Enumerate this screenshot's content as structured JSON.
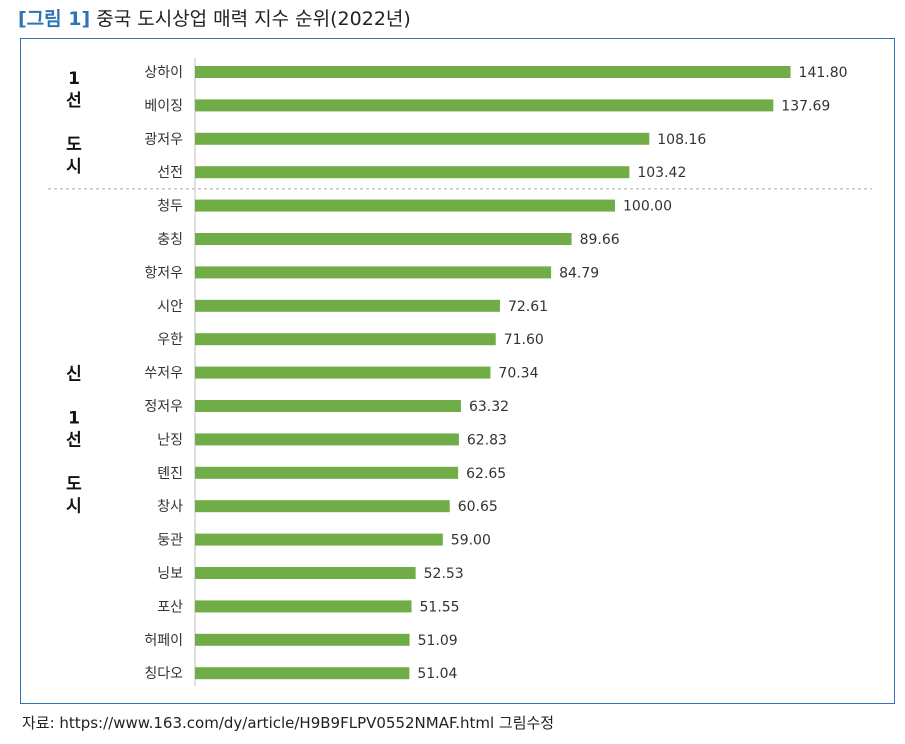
{
  "caption": {
    "tag": "[그림 1]",
    "title": "중국 도시상업 매력 지수 순위(2022년)"
  },
  "chart_data": {
    "type": "bar",
    "orientation": "horizontal",
    "categories": [
      "상하이",
      "베이징",
      "광저우",
      "선전",
      "청두",
      "충칭",
      "항저우",
      "시안",
      "우한",
      "쑤저우",
      "정저우",
      "난징",
      "톈진",
      "창사",
      "둥관",
      "닝보",
      "포산",
      "허페이",
      "칭다오"
    ],
    "values": [
      141.8,
      137.69,
      108.16,
      103.42,
      100.0,
      89.66,
      84.79,
      72.61,
      71.6,
      70.34,
      63.32,
      62.83,
      62.65,
      60.65,
      59.0,
      52.53,
      51.55,
      51.09,
      51.04
    ],
    "value_labels": [
      "141.80",
      "137.69",
      "108.16",
      "103.42",
      "100.00",
      "89.66",
      "84.79",
      "72.61",
      "71.60",
      "70.34",
      "63.32",
      "62.83",
      "62.65",
      "60.65",
      "59.00",
      "52.53",
      "51.55",
      "51.09",
      "51.04"
    ],
    "groups": [
      {
        "lines": [
          "1",
          "선",
          "",
          "도",
          "시"
        ],
        "from": 0,
        "to": 3
      },
      {
        "lines": [
          "신",
          "",
          "1",
          "선",
          "",
          "도",
          "시"
        ],
        "from": 4,
        "to": 18
      }
    ],
    "bar_color": "#70ad47",
    "xlim": [
      0,
      150
    ],
    "grid": false,
    "legend": "none"
  },
  "source": "자료: https://www.163.com/dy/article/H9B9FLPV0552NMAF.html 그림수정"
}
